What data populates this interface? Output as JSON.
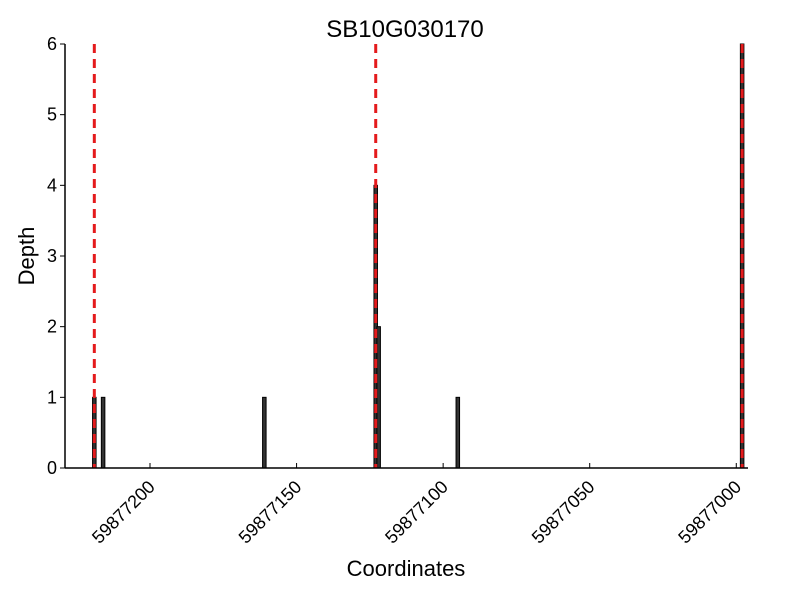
{
  "chart_data": {
    "type": "bar",
    "title": "SB10G030170",
    "xlabel": "Coordinates",
    "ylabel": "Depth",
    "xlim": [
      59877229,
      59876996
    ],
    "ylim": [
      0,
      6
    ],
    "x_reversed": true,
    "xticks": [
      59877200,
      59877150,
      59877100,
      59877050,
      59877000
    ],
    "xtick_labels": [
      "59877200",
      "59877150",
      "59877100",
      "59877050",
      "59877000"
    ],
    "yticks": [
      0,
      1,
      2,
      3,
      4,
      5,
      6
    ],
    "ytick_labels": [
      "0",
      "1",
      "2",
      "3",
      "4",
      "5",
      "6"
    ],
    "bars": [
      {
        "x": 59877219,
        "y": 1
      },
      {
        "x": 59877216,
        "y": 1
      },
      {
        "x": 59877161,
        "y": 1
      },
      {
        "x": 59877123,
        "y": 4
      },
      {
        "x": 59877122,
        "y": 2
      },
      {
        "x": 59877095,
        "y": 1
      },
      {
        "x": 59876998,
        "y": 6
      }
    ],
    "vlines": [
      {
        "x": 59877219,
        "color": "#e41a1c",
        "style": "dashed"
      },
      {
        "x": 59877123,
        "color": "#e41a1c",
        "style": "dashed"
      },
      {
        "x": 59876998,
        "color": "#e41a1c",
        "style": "dashed"
      }
    ],
    "grid": false,
    "legend": "none",
    "colors": {
      "bar": "#333333",
      "marker": "#e41a1c"
    }
  }
}
